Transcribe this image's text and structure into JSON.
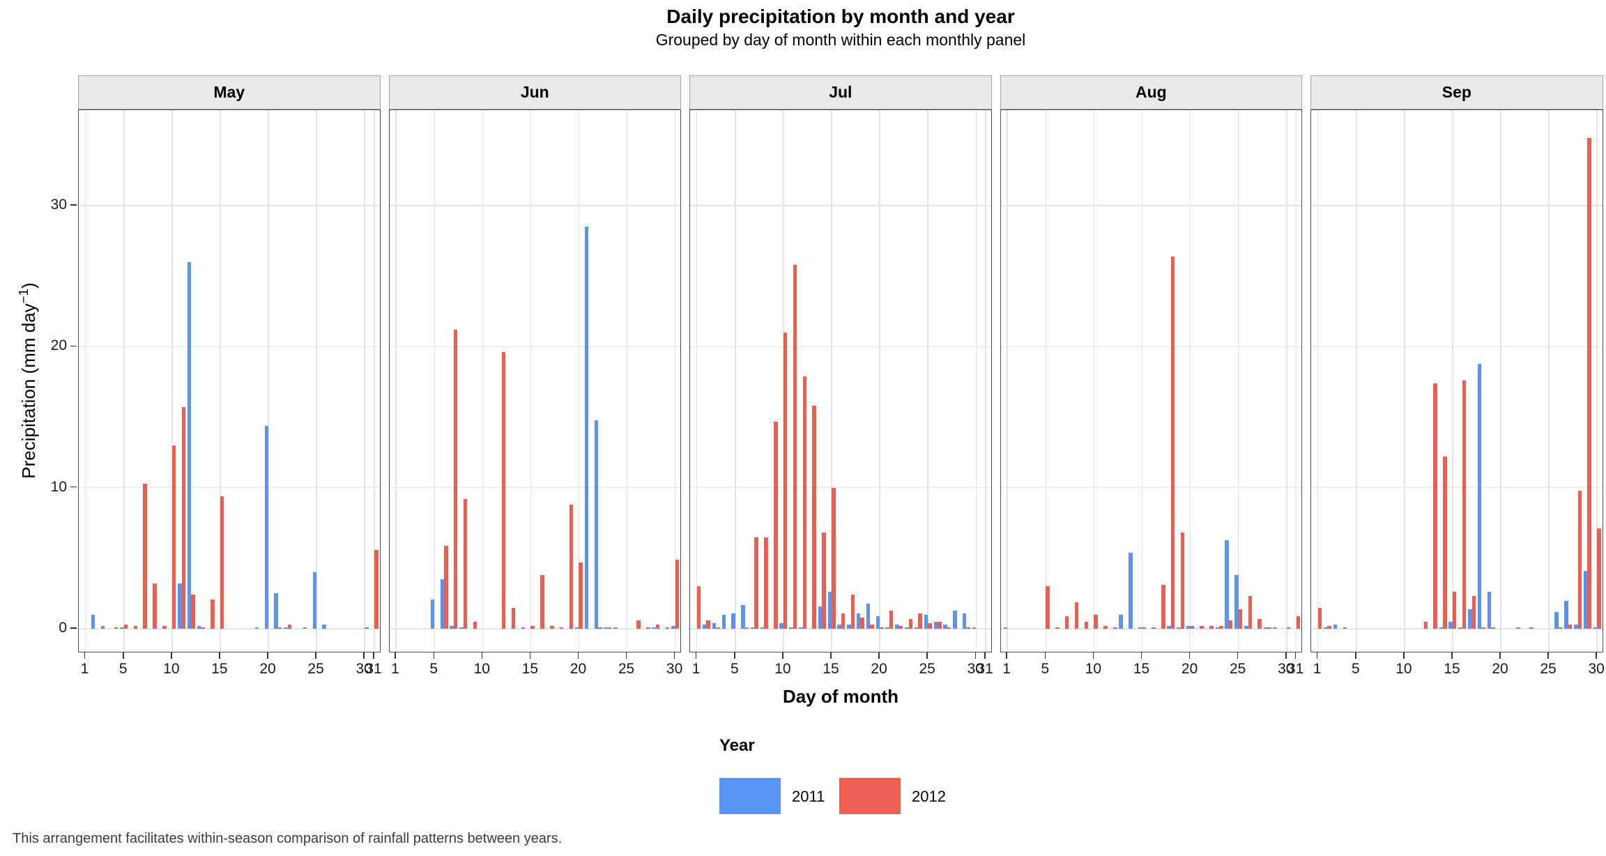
{
  "title": "Daily precipitation by month and year",
  "subtitle": "Grouped by day of month within each monthly panel",
  "y_axis": {
    "label_pre": "Precipitation (mm day",
    "label_sup": "−1",
    "label_post": ")",
    "ticks": [
      "0",
      "10",
      "20",
      "30"
    ]
  },
  "x_axis": {
    "label": "Day of month"
  },
  "legend": {
    "title": "Year",
    "items": [
      {
        "label": "2011",
        "color": "#5B93F2"
      },
      {
        "label": "2012",
        "color": "#EC5E52"
      }
    ]
  },
  "footer": "This arrangement facilitates within-season comparison of rainfall patterns between years.",
  "colors": {
    "series_2011": "#5B93F2",
    "series_2012": "#EC5E52",
    "strip_bg": "#E9E9E9",
    "panel_border": "#4D4D4D",
    "gridline": "#E4E4E4"
  },
  "chart_data": {
    "type": "bar",
    "title": "Daily precipitation by month and year",
    "xlabel": "Day of month",
    "ylabel": "Precipitation (mm day^-1)",
    "ylim": [
      0,
      36.75
    ],
    "y_ticks": [
      0,
      10,
      20,
      30
    ],
    "grid": "major",
    "legend_position": "bottom",
    "facets": [
      {
        "month": "May",
        "days_in_month": 31,
        "x_ticks": [
          1,
          5,
          10,
          15,
          20,
          25,
          30,
          31
        ],
        "series": [
          {
            "name": "2011",
            "points": [
              [
                2,
                1.0
              ],
              [
                3,
                0.2
              ],
              [
                5,
                0.1
              ],
              [
                11,
                3.2
              ],
              [
                12,
                26.0
              ],
              [
                13,
                0.2
              ],
              [
                19,
                0.1
              ],
              [
                20,
                14.4
              ],
              [
                21,
                2.5
              ],
              [
                22,
                0.1
              ],
              [
                24,
                0.1
              ],
              [
                25,
                4.0
              ],
              [
                26,
                0.3
              ]
            ]
          },
          {
            "name": "2012",
            "points": [
              [
                4,
                0.1
              ],
              [
                5,
                0.3
              ],
              [
                6,
                0.2
              ],
              [
                7,
                10.3
              ],
              [
                8,
                3.2
              ],
              [
                9,
                0.2
              ],
              [
                10,
                13.0
              ],
              [
                11,
                15.7
              ],
              [
                12,
                2.4
              ],
              [
                13,
                0.1
              ],
              [
                14,
                2.1
              ],
              [
                15,
                9.4
              ],
              [
                21,
                0.1
              ],
              [
                22,
                0.3
              ],
              [
                30,
                0.1
              ],
              [
                31,
                5.6
              ]
            ]
          }
        ]
      },
      {
        "month": "Jun",
        "days_in_month": 30,
        "x_ticks": [
          1,
          5,
          10,
          15,
          20,
          25,
          30
        ],
        "series": [
          {
            "name": "2011",
            "points": [
              [
                5,
                2.1
              ],
              [
                6,
                3.5
              ],
              [
                7,
                0.2
              ],
              [
                8,
                0.1
              ],
              [
                20,
                0.1
              ],
              [
                21,
                28.5
              ],
              [
                22,
                14.8
              ],
              [
                23,
                0.1
              ],
              [
                24,
                0.1
              ],
              [
                28,
                0.1
              ],
              [
                30,
                0.2
              ]
            ]
          },
          {
            "name": "2012",
            "points": [
              [
                6,
                5.9
              ],
              [
                7,
                21.2
              ],
              [
                8,
                9.2
              ],
              [
                9,
                0.5
              ],
              [
                12,
                19.6
              ],
              [
                13,
                1.5
              ],
              [
                14,
                0.1
              ],
              [
                15,
                0.2
              ],
              [
                16,
                3.8
              ],
              [
                17,
                0.2
              ],
              [
                18,
                0.1
              ],
              [
                19,
                8.8
              ],
              [
                20,
                4.7
              ],
              [
                22,
                0.1
              ],
              [
                23,
                0.1
              ],
              [
                26,
                0.6
              ],
              [
                27,
                0.1
              ],
              [
                28,
                0.3
              ],
              [
                29,
                0.1
              ],
              [
                30,
                4.9
              ]
            ]
          }
        ]
      },
      {
        "month": "Jul",
        "days_in_month": 31,
        "x_ticks": [
          1,
          5,
          10,
          15,
          20,
          25,
          30,
          31
        ],
        "series": [
          {
            "name": "2011",
            "points": [
              [
                2,
                0.3
              ],
              [
                3,
                0.4
              ],
              [
                4,
                1.0
              ],
              [
                5,
                1.1
              ],
              [
                6,
                1.7
              ],
              [
                7,
                0.1
              ],
              [
                8,
                0.1
              ],
              [
                10,
                0.4
              ],
              [
                11,
                0.1
              ],
              [
                12,
                0.1
              ],
              [
                14,
                1.6
              ],
              [
                15,
                2.6
              ],
              [
                16,
                0.3
              ],
              [
                17,
                0.3
              ],
              [
                18,
                1.1
              ],
              [
                19,
                1.8
              ],
              [
                20,
                0.9
              ],
              [
                21,
                0.1
              ],
              [
                22,
                0.3
              ],
              [
                23,
                0.1
              ],
              [
                24,
                0.1
              ],
              [
                25,
                1.0
              ],
              [
                26,
                0.5
              ],
              [
                27,
                0.3
              ],
              [
                28,
                1.3
              ],
              [
                29,
                1.1
              ],
              [
                30,
                0.1
              ]
            ]
          },
          {
            "name": "2012",
            "points": [
              [
                1,
                3.0
              ],
              [
                2,
                0.6
              ],
              [
                3,
                0.1
              ],
              [
                6,
                0.1
              ],
              [
                7,
                6.5
              ],
              [
                8,
                6.5
              ],
              [
                9,
                14.7
              ],
              [
                10,
                21.0
              ],
              [
                11,
                25.8
              ],
              [
                12,
                17.9
              ],
              [
                13,
                15.8
              ],
              [
                14,
                6.8
              ],
              [
                15,
                10.0
              ],
              [
                16,
                1.1
              ],
              [
                17,
                2.4
              ],
              [
                18,
                0.8
              ],
              [
                19,
                0.3
              ],
              [
                20,
                0.1
              ],
              [
                21,
                1.3
              ],
              [
                22,
                0.2
              ],
              [
                23,
                0.7
              ],
              [
                24,
                1.1
              ],
              [
                25,
                0.4
              ],
              [
                26,
                0.5
              ],
              [
                27,
                0.1
              ],
              [
                29,
                0.1
              ]
            ]
          }
        ]
      },
      {
        "month": "Aug",
        "days_in_month": 31,
        "x_ticks": [
          1,
          5,
          10,
          15,
          20,
          25,
          30,
          31
        ],
        "series": [
          {
            "name": "2011",
            "points": [
              [
                1,
                0.1
              ],
              [
                13,
                1.0
              ],
              [
                14,
                5.4
              ],
              [
                15,
                0.1
              ],
              [
                18,
                0.2
              ],
              [
                19,
                0.1
              ],
              [
                20,
                0.2
              ],
              [
                23,
                0.1
              ],
              [
                24,
                6.3
              ],
              [
                25,
                3.8
              ],
              [
                26,
                0.2
              ],
              [
                28,
                0.1
              ],
              [
                29,
                0.1
              ]
            ]
          },
          {
            "name": "2012",
            "points": [
              [
                5,
                3.0
              ],
              [
                6,
                0.1
              ],
              [
                7,
                0.9
              ],
              [
                8,
                1.9
              ],
              [
                9,
                0.5
              ],
              [
                10,
                1.0
              ],
              [
                11,
                0.2
              ],
              [
                12,
                0.1
              ],
              [
                15,
                0.1
              ],
              [
                16,
                0.1
              ],
              [
                17,
                3.1
              ],
              [
                18,
                26.4
              ],
              [
                19,
                6.8
              ],
              [
                20,
                0.2
              ],
              [
                21,
                0.2
              ],
              [
                22,
                0.2
              ],
              [
                23,
                0.2
              ],
              [
                24,
                0.6
              ],
              [
                25,
                1.4
              ],
              [
                26,
                2.3
              ],
              [
                27,
                0.7
              ],
              [
                28,
                0.1
              ],
              [
                30,
                0.1
              ],
              [
                31,
                0.9
              ]
            ]
          }
        ]
      },
      {
        "month": "Sep",
        "days_in_month": 30,
        "x_ticks": [
          1,
          5,
          10,
          15,
          20,
          25,
          30
        ],
        "series": [
          {
            "name": "2011",
            "points": [
              [
                2,
                0.1
              ],
              [
                3,
                0.3
              ],
              [
                4,
                0.1
              ],
              [
                14,
                0.1
              ],
              [
                15,
                0.5
              ],
              [
                16,
                0.1
              ],
              [
                17,
                1.4
              ],
              [
                18,
                18.8
              ],
              [
                19,
                2.6
              ],
              [
                22,
                0.1
              ],
              [
                26,
                1.2
              ],
              [
                27,
                2.0
              ],
              [
                28,
                0.3
              ],
              [
                29,
                4.1
              ],
              [
                30,
                0.1
              ]
            ]
          },
          {
            "name": "2012",
            "points": [
              [
                1,
                1.5
              ],
              [
                2,
                0.2
              ],
              [
                12,
                0.5
              ],
              [
                13,
                17.4
              ],
              [
                14,
                12.2
              ],
              [
                15,
                2.6
              ],
              [
                16,
                17.6
              ],
              [
                17,
                2.3
              ],
              [
                18,
                0.1
              ],
              [
                19,
                0.1
              ],
              [
                23,
                0.1
              ],
              [
                26,
                0.1
              ],
              [
                27,
                0.3
              ],
              [
                28,
                9.8
              ],
              [
                29,
                34.8
              ],
              [
                30,
                7.1
              ]
            ]
          }
        ]
      }
    ]
  }
}
